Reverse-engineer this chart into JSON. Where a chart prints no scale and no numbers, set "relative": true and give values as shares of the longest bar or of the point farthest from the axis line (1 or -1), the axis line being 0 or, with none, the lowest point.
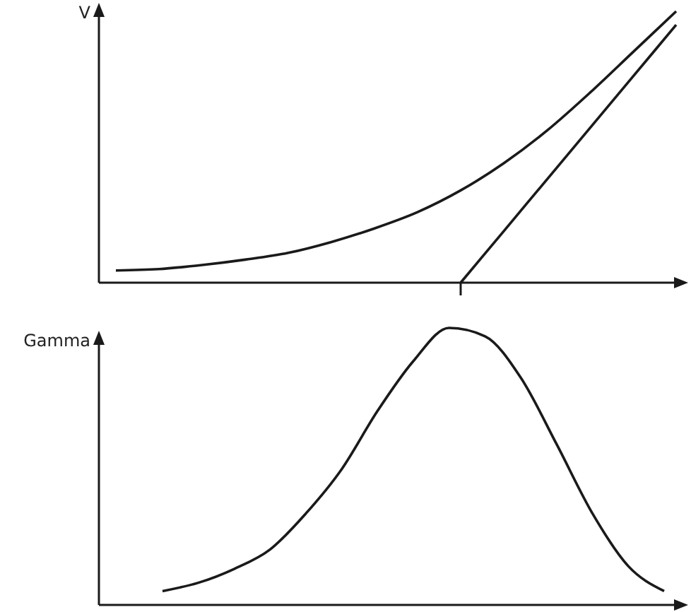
{
  "chart_data": [
    {
      "type": "line",
      "relative": true,
      "ylabel": "V",
      "categories": [
        null,
        null,
        null,
        null,
        null,
        null,
        null,
        null,
        null,
        null,
        null,
        null,
        null,
        null
      ],
      "series": [
        {
          "color": "#1a1a1a",
          "values": [
            0.045,
            0.05,
            0.065,
            0.085,
            0.11,
            0.15,
            0.2,
            0.26,
            0.34,
            0.44,
            0.56,
            0.7,
            0.85,
            1.0
          ]
        },
        {
          "color": "#1a1a1a",
          "values": [
            null,
            null,
            null,
            null,
            null,
            null,
            null,
            null,
            0,
            0.19,
            0.38,
            0.57,
            0.76,
            0.95
          ]
        }
      ],
      "marker": "none",
      "line_style": "solid"
    },
    {
      "type": "line",
      "relative": true,
      "ylabel": "Gamma",
      "categories": [
        null,
        null,
        null,
        null,
        null,
        null,
        null,
        null,
        null,
        null,
        null,
        null,
        null,
        null,
        null
      ],
      "series": [
        {
          "color": "#1a1a1a",
          "values": [
            0.05,
            0.08,
            0.13,
            0.2,
            0.33,
            0.49,
            0.7,
            0.88,
            1.0,
            0.97,
            0.82,
            0.58,
            0.33,
            0.14,
            0.05
          ]
        }
      ],
      "marker": "none",
      "line_style": "solid"
    }
  ]
}
